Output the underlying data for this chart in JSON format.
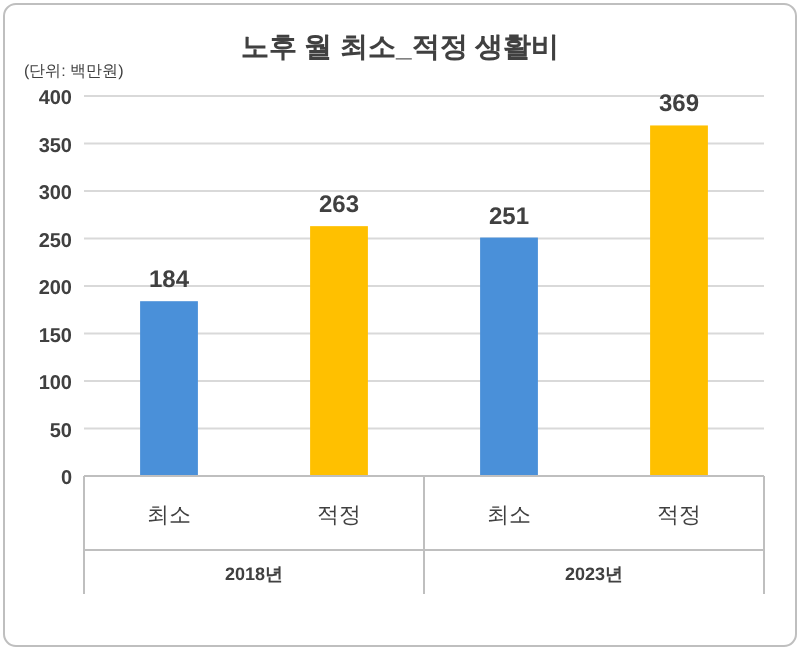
{
  "chart_data": {
    "type": "bar",
    "title": "노후 월 최소_적정 생활비",
    "annotations": [
      "(단위: 백만원)",
      "2018년",
      "2023년"
    ],
    "categories": [
      "최소",
      "적정",
      "최소",
      "적정"
    ],
    "values": [
      184,
      263,
      251,
      369
    ],
    "colors": [
      "#4a90d9",
      "#ffc000",
      "#4a90d9",
      "#ffc000"
    ],
    "ylim": [
      0,
      400
    ],
    "yticks": [
      0,
      50,
      100,
      150,
      200,
      250,
      300,
      350,
      400
    ],
    "grid": "y",
    "data_labels": true
  }
}
